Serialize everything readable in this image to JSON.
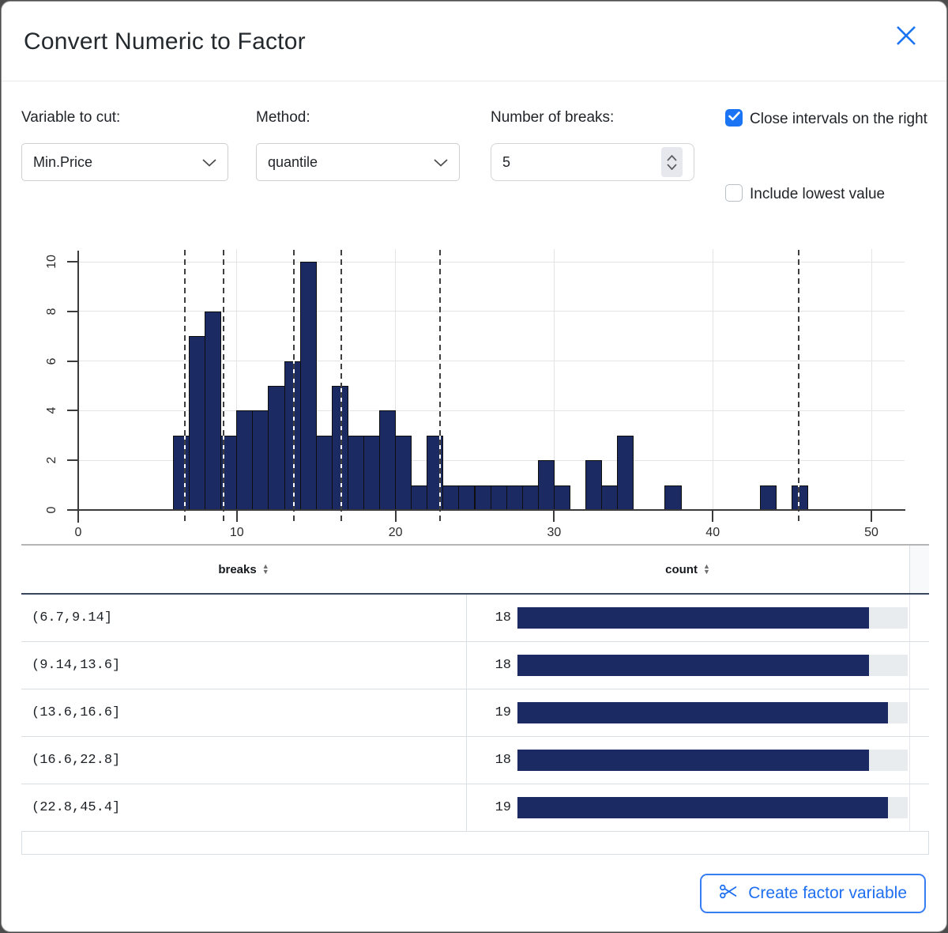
{
  "dialog": {
    "title": "Convert Numeric to Factor"
  },
  "form": {
    "variable": {
      "label": "Variable to cut:",
      "value": "Min.Price"
    },
    "method": {
      "label": "Method:",
      "value": "quantile"
    },
    "num_breaks": {
      "label": "Number of breaks:",
      "value": "5"
    },
    "close_intervals": {
      "label": "Close intervals on the right",
      "checked": true
    },
    "include_lowest": {
      "label": "Include lowest value",
      "checked": false
    }
  },
  "chart_data": {
    "type": "bar",
    "subtype": "histogram",
    "bin_start": 6,
    "bin_width": 1,
    "values": [
      3,
      7,
      8,
      3,
      4,
      4,
      5,
      6,
      10,
      3,
      5,
      3,
      3,
      4,
      3,
      1,
      3,
      1,
      1,
      1,
      1,
      1,
      1,
      2,
      1,
      0,
      2,
      1,
      3,
      0,
      0,
      1,
      0,
      0,
      0,
      0,
      0,
      1,
      0,
      1
    ],
    "break_lines": [
      6.7,
      9.14,
      13.6,
      16.6,
      22.8,
      45.4
    ],
    "x_ticks": [
      0,
      10,
      20,
      30,
      40,
      50
    ],
    "y_ticks": [
      0,
      2,
      4,
      6,
      8,
      10
    ],
    "xlim": [
      0,
      52
    ],
    "ylim": [
      0,
      10
    ],
    "xlabel": "",
    "ylabel": "",
    "title": "",
    "grid": true,
    "bar_color": "#1b2a63",
    "break_line_style": "dashed"
  },
  "table": {
    "columns": [
      "breaks",
      "count"
    ],
    "rows": [
      {
        "breaks": "(6.7,9.14]",
        "count": 18
      },
      {
        "breaks": "(9.14,13.6]",
        "count": 18
      },
      {
        "breaks": "(13.6,16.6]",
        "count": 19
      },
      {
        "breaks": "(16.6,22.8]",
        "count": 18
      },
      {
        "breaks": "(22.8,45.4]",
        "count": 19
      }
    ],
    "bar_scale_max": 20
  },
  "footer": {
    "create_button": "Create factor variable"
  },
  "colors": {
    "accent_blue": "#1b74f3",
    "bar_navy": "#1b2a63",
    "bar_track": "#e9ecef"
  }
}
